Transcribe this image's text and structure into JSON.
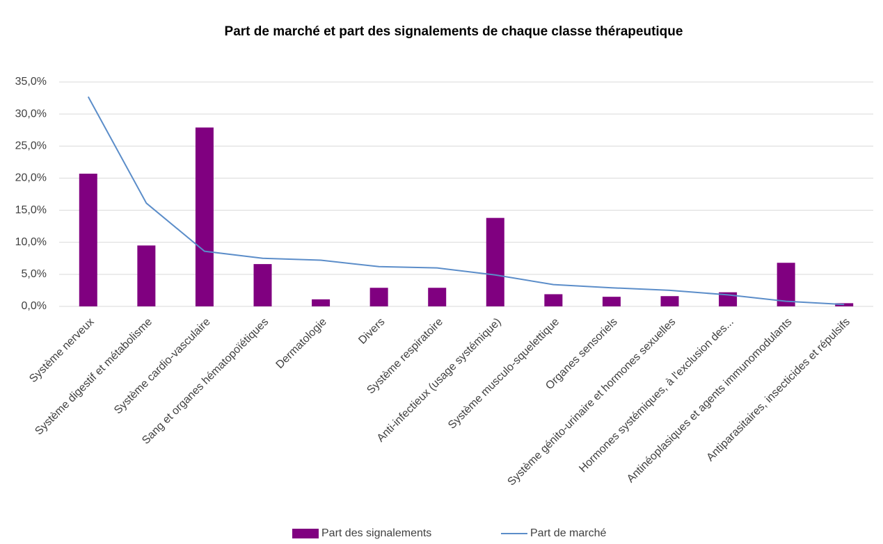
{
  "chart_data": {
    "type": "bar",
    "title": "Part de marché et part des signalements de chaque classe thérapeutique",
    "categories": [
      "Système nerveux",
      "Système digestif et métabolisme",
      "Système cardio-vasculaire",
      "Sang et organes hématopoïétiques",
      "Dermatologie",
      "Divers",
      "Système respiratoire",
      "Anti-infectieux (usage systémique)",
      "Système musculo-squelettique",
      "Organes sensoriels",
      "Système génito-urinaire et hormones sexuelles",
      "Hormones systémiques, à l'exclusion des...",
      "Antinéoplasiques et agents immunomodulants",
      "Antiparasitaires, insecticides et répulsifs"
    ],
    "series": [
      {
        "name": "Part des signalements",
        "type": "bar",
        "color": "#800080",
        "values": [
          20.7,
          9.5,
          27.9,
          6.6,
          1.1,
          2.9,
          2.9,
          13.8,
          1.9,
          1.5,
          1.6,
          2.2,
          6.8,
          0.5
        ]
      },
      {
        "name": "Part de marché",
        "type": "line",
        "color": "#5b8dc9",
        "values": [
          32.7,
          16.1,
          8.6,
          7.5,
          7.2,
          6.2,
          6.0,
          4.9,
          3.4,
          2.9,
          2.5,
          1.8,
          0.8,
          0.3
        ]
      }
    ],
    "ylim": [
      0,
      35
    ],
    "yticks": [
      {
        "value": 0,
        "label": "0,0%"
      },
      {
        "value": 5,
        "label": "5,0%"
      },
      {
        "value": 10,
        "label": "10,0%"
      },
      {
        "value": 15,
        "label": "15,0%"
      },
      {
        "value": 20,
        "label": "20,0%"
      },
      {
        "value": 25,
        "label": "25,0%"
      },
      {
        "value": 30,
        "label": "30,0%"
      },
      {
        "value": 35,
        "label": "35,0%"
      }
    ],
    "grid": true
  }
}
